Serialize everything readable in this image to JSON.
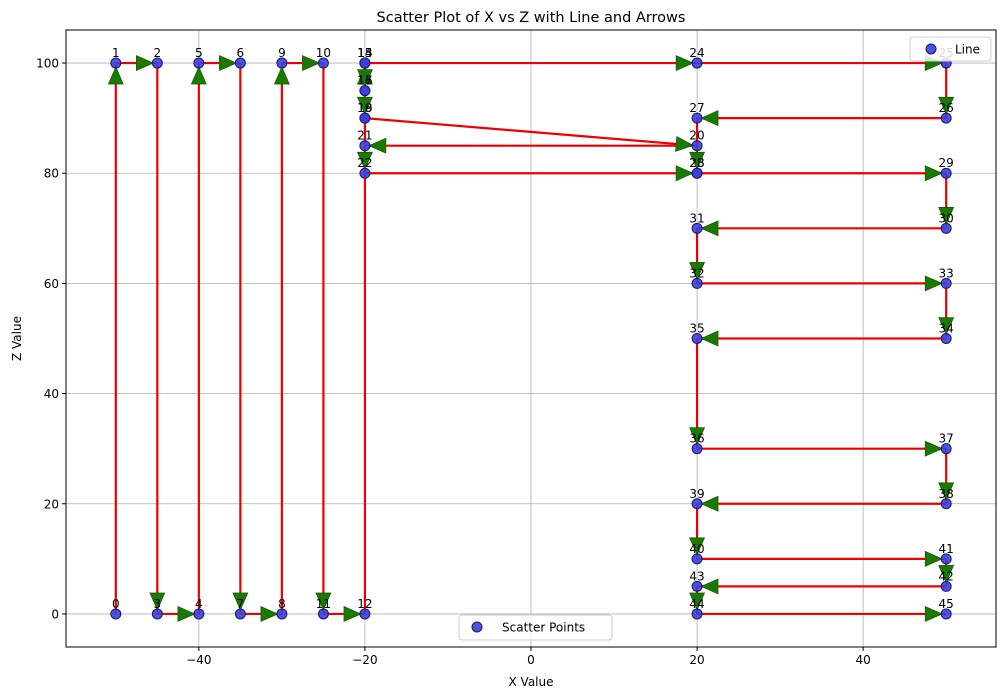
{
  "chart_data": {
    "type": "scatter",
    "title": "Scatter Plot of X vs Z with Line and Arrows",
    "xlabel": "X Value",
    "ylabel": "Z Value",
    "xlim": [
      -56,
      56
    ],
    "ylim": [
      -6,
      106
    ],
    "xticks": [
      -40,
      -20,
      0,
      20,
      40
    ],
    "xtick_labels": [
      "−40",
      "−20",
      "0",
      "20",
      "40"
    ],
    "yticks": [
      0,
      20,
      40,
      60,
      80,
      100
    ],
    "ytick_labels": [
      "0",
      "20",
      "40",
      "60",
      "80",
      "100"
    ],
    "grid": true,
    "colors": {
      "points": "#3a3fe0",
      "point_edge": "#1a1a66",
      "line": "#ee0000",
      "arrow": "#1a7a00",
      "grid": "#b0b0b0"
    },
    "series": [
      {
        "name": "Scatter Points",
        "x": [
          -50,
          -50,
          -45,
          -45,
          -40,
          -40,
          -35,
          -35,
          -30,
          -30,
          -25,
          -25,
          -20,
          -20,
          -20,
          -20,
          -20,
          -20,
          -20,
          -20,
          20,
          -20,
          -20,
          20,
          20,
          50,
          50,
          20,
          20,
          50,
          50,
          20,
          20,
          50,
          50,
          20,
          20,
          50,
          50,
          20,
          20,
          50,
          50,
          20,
          20,
          50
        ],
        "y": [
          0,
          100,
          100,
          0,
          0,
          100,
          100,
          0,
          0,
          100,
          100,
          0,
          0,
          100,
          100,
          100,
          95,
          95,
          90,
          90,
          85,
          85,
          80,
          80,
          100,
          100,
          90,
          90,
          80,
          80,
          70,
          70,
          60,
          60,
          50,
          50,
          30,
          30,
          20,
          20,
          10,
          10,
          5,
          5,
          0,
          0
        ],
        "labels": [
          "0",
          "1",
          "2",
          "3",
          "4",
          "5",
          "6",
          "7",
          "8",
          "9",
          "10",
          "11",
          "12",
          "13",
          "14",
          "15",
          "16",
          "17",
          "18",
          "19",
          "20",
          "21",
          "22",
          "23",
          "24",
          "25",
          "26",
          "27",
          "28",
          "29",
          "30",
          "31",
          "32",
          "33",
          "34",
          "35",
          "36",
          "37",
          "38",
          "39",
          "40",
          "41",
          "42",
          "43",
          "44",
          "45"
        ]
      },
      {
        "name": "Line",
        "type": "line",
        "path_order": [
          0,
          1,
          2,
          3,
          4,
          5,
          6,
          7,
          8,
          9,
          10,
          11,
          12,
          13,
          24,
          25,
          26,
          27,
          28,
          29,
          30,
          31,
          32,
          33,
          34,
          35,
          36,
          37,
          38,
          39,
          40,
          41,
          42,
          43,
          44,
          45
        ],
        "extra_segments": [
          [
            15,
            16
          ],
          [
            16,
            17
          ],
          [
            17,
            18
          ],
          [
            18,
            19
          ],
          [
            19,
            20
          ],
          [
            20,
            21
          ],
          [
            21,
            22
          ],
          [
            22,
            23
          ]
        ]
      }
    ],
    "legend": [
      {
        "label": "Scatter Points",
        "placement": "bottom-center"
      },
      {
        "label": "Line",
        "placement": "top-right"
      }
    ]
  }
}
